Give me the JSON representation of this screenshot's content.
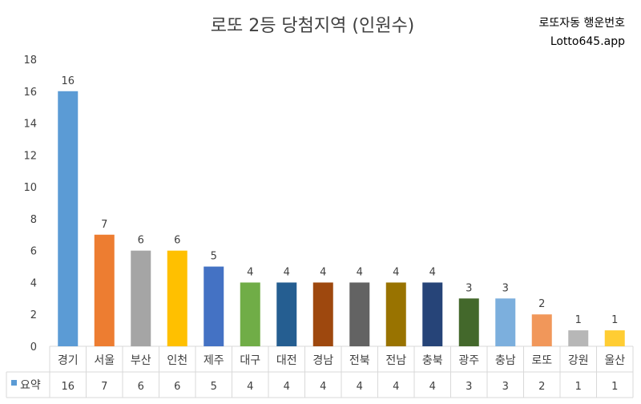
{
  "header": {
    "title": "로또 2등 당첨지역 (인원수)",
    "brand_name": "로또자동 행운번호",
    "brand_site": "Lotto645.app"
  },
  "chart_data": {
    "type": "bar",
    "title": "로또 2등 당첨지역 (인원수)",
    "xlabel": "",
    "ylabel": "",
    "ylim": [
      0,
      18
    ],
    "yticks": [
      0,
      2,
      4,
      6,
      8,
      10,
      12,
      14,
      16,
      18
    ],
    "grid": false,
    "legend": "data-table",
    "categories": [
      "경기",
      "서울",
      "부산",
      "인천",
      "제주",
      "대구",
      "대전",
      "경남",
      "전북",
      "전남",
      "충북",
      "광주",
      "충남",
      "로또",
      "강원",
      "울산"
    ],
    "series": [
      {
        "name": "요약",
        "values": [
          16,
          7,
          6,
          6,
          5,
          4,
          4,
          4,
          4,
          4,
          4,
          3,
          3,
          2,
          1,
          1
        ],
        "colors": [
          "#5B9BD5",
          "#ED7D31",
          "#A5A5A5",
          "#FFC000",
          "#4472C4",
          "#70AD47",
          "#255E91",
          "#9E480E",
          "#636363",
          "#997300",
          "#264478",
          "#43682B",
          "#7CAFDD",
          "#F1975A",
          "#B7B7B7",
          "#FFCD33"
        ]
      }
    ],
    "data_table": {
      "series_label": "요약",
      "legend_color": "#5B9BD5"
    }
  }
}
